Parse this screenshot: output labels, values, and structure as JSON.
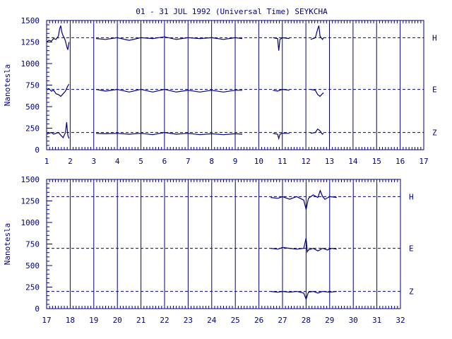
{
  "title": "01 - 31 JUL 1992 (Universal Time) SEYKCHA",
  "colors": {
    "ink": "#000080",
    "background": "#ffffff"
  },
  "chart_data": [
    {
      "type": "line",
      "ylabel": "Nanotesla",
      "xlim": [
        1,
        17
      ],
      "ylim": [
        0,
        1500
      ],
      "x_ticks": [
        "1",
        "2",
        "3",
        "4",
        "5",
        "6",
        "7",
        "8",
        "9",
        "10",
        "11",
        "12",
        "13",
        "14",
        "15",
        "16",
        "17"
      ],
      "y_ticks": [
        "0",
        "250",
        "500",
        "750",
        "1000",
        "1250",
        "1500"
      ],
      "grid": "vertical lines at each day",
      "series": [
        {
          "name": "H",
          "baseline": 1300,
          "segments": [
            {
              "x": [
                1.0,
                1.1,
                1.2,
                1.3,
                1.4,
                1.5,
                1.55,
                1.6,
                1.65,
                1.7,
                1.75,
                1.8,
                1.85,
                1.9,
                1.95
              ],
              "y": [
                1250,
                1270,
                1260,
                1290,
                1280,
                1320,
                1400,
                1440,
                1360,
                1320,
                1300,
                1260,
                1200,
                1160,
                1250
              ]
            },
            {
              "x": [
                3.1,
                3.5,
                4.0,
                4.5,
                5.0,
                5.5,
                6.0,
                6.5,
                7.0,
                7.5,
                8.0,
                8.5,
                9.0,
                9.3
              ],
              "y": [
                1290,
                1280,
                1300,
                1270,
                1300,
                1290,
                1310,
                1280,
                1300,
                1290,
                1300,
                1280,
                1300,
                1290
              ]
            },
            {
              "x": [
                10.6,
                10.8,
                10.85,
                10.9,
                11.0,
                11.3
              ],
              "y": [
                1300,
                1290,
                1150,
                1280,
                1300,
                1290
              ]
            },
            {
              "x": [
                12.2,
                12.4,
                12.5,
                12.55,
                12.6,
                12.7,
                12.75
              ],
              "y": [
                1280,
                1300,
                1400,
                1440,
                1320,
                1280,
                1300
              ]
            }
          ]
        },
        {
          "name": "E",
          "baseline": 700,
          "segments": [
            {
              "x": [
                1.0,
                1.1,
                1.2,
                1.3,
                1.4,
                1.5,
                1.6,
                1.7,
                1.8,
                1.9,
                1.95
              ],
              "y": [
                700,
                710,
                680,
                690,
                650,
                640,
                620,
                650,
                680,
                740,
                760
              ]
            },
            {
              "x": [
                3.1,
                3.5,
                4.0,
                4.5,
                5.0,
                5.5,
                6.0,
                6.5,
                7.0,
                7.5,
                8.0,
                8.5,
                9.0,
                9.3
              ],
              "y": [
                700,
                680,
                700,
                670,
                700,
                670,
                700,
                670,
                690,
                670,
                690,
                670,
                690,
                690
              ]
            },
            {
              "x": [
                10.6,
                10.8,
                11.0,
                11.3
              ],
              "y": [
                690,
                680,
                700,
                690
              ]
            },
            {
              "x": [
                12.2,
                12.4,
                12.5,
                12.6,
                12.7,
                12.75
              ],
              "y": [
                700,
                690,
                640,
                620,
                650,
                660
              ]
            }
          ]
        },
        {
          "name": "Z",
          "baseline": 200,
          "segments": [
            {
              "x": [
                1.0,
                1.1,
                1.2,
                1.3,
                1.4,
                1.5,
                1.6,
                1.7,
                1.8,
                1.85,
                1.9,
                1.95
              ],
              "y": [
                180,
                190,
                200,
                180,
                190,
                200,
                170,
                140,
                200,
                320,
                170,
                130
              ]
            },
            {
              "x": [
                3.1,
                3.5,
                4.0,
                4.5,
                5.0,
                5.5,
                6.0,
                6.5,
                7.0,
                7.5,
                8.0,
                8.5,
                9.0,
                9.3
              ],
              "y": [
                190,
                185,
                190,
                180,
                190,
                175,
                200,
                180,
                190,
                175,
                185,
                175,
                185,
                180
              ]
            },
            {
              "x": [
                10.6,
                10.8,
                10.85,
                10.9,
                11.0,
                11.3
              ],
              "y": [
                190,
                180,
                130,
                180,
                190,
                190
              ]
            },
            {
              "x": [
                12.2,
                12.4,
                12.5,
                12.6,
                12.7,
                12.75
              ],
              "y": [
                190,
                200,
                240,
                220,
                180,
                190
              ]
            }
          ]
        }
      ]
    },
    {
      "type": "line",
      "ylabel": "Nanotesla",
      "xlim": [
        17,
        32
      ],
      "ylim": [
        0,
        1500
      ],
      "x_ticks": [
        "17",
        "18",
        "19",
        "20",
        "21",
        "22",
        "23",
        "24",
        "25",
        "26",
        "27",
        "28",
        "29",
        "30",
        "31",
        "32"
      ],
      "y_ticks": [
        "0",
        "250",
        "500",
        "750",
        "1000",
        "1250",
        "1500"
      ],
      "grid": "vertical lines at each day",
      "series": [
        {
          "name": "H",
          "baseline": 1300,
          "segments": [
            {
              "x": [
                26.5,
                26.8,
                27.0,
                27.3,
                27.6,
                27.9,
                28.0,
                28.1,
                28.3,
                28.5,
                28.6,
                28.7,
                28.8,
                29.0,
                29.3
              ],
              "y": [
                1290,
                1280,
                1300,
                1270,
                1300,
                1260,
                1150,
                1280,
                1320,
                1290,
                1370,
                1300,
                1270,
                1300,
                1290
              ]
            }
          ]
        },
        {
          "name": "E",
          "baseline": 700,
          "segments": [
            {
              "x": [
                26.5,
                26.8,
                27.0,
                27.3,
                27.6,
                27.9,
                28.0,
                28.05,
                28.1,
                28.3,
                28.5,
                28.7,
                28.9,
                29.1,
                29.3
              ],
              "y": [
                700,
                690,
                710,
                700,
                690,
                700,
                820,
                660,
                680,
                700,
                670,
                700,
                680,
                700,
                690
              ]
            }
          ]
        },
        {
          "name": "Z",
          "baseline": 200,
          "segments": [
            {
              "x": [
                26.5,
                26.8,
                27.0,
                27.3,
                27.6,
                27.9,
                28.0,
                28.1,
                28.3,
                28.5,
                28.7,
                29.0,
                29.3
              ],
              "y": [
                200,
                190,
                200,
                190,
                200,
                180,
                110,
                190,
                200,
                180,
                200,
                190,
                200
              ]
            }
          ]
        }
      ]
    }
  ]
}
